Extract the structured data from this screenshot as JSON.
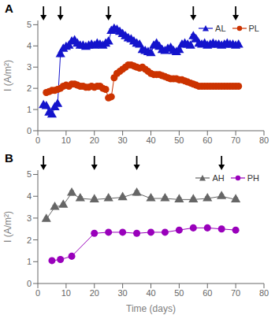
{
  "chart_data": [
    {
      "type": "line",
      "title": "A",
      "y_label": "I (A/m²)",
      "xlim": [
        0,
        80
      ],
      "xticks": [
        0,
        10,
        20,
        30,
        40,
        50,
        60,
        70,
        80
      ],
      "ylim": [
        0,
        5.2
      ],
      "yticks": [
        0,
        1,
        2,
        3,
        4,
        5
      ],
      "grid": false,
      "legend": "upper right",
      "arrows_x": [
        2,
        8,
        25,
        55,
        70
      ],
      "series": [
        {
          "name": "AL",
          "color": "#1414cc",
          "marker": "triangle",
          "line_style": "solid",
          "x": [
            2,
            3,
            4,
            5,
            6,
            7,
            8,
            9,
            10,
            11,
            12,
            13,
            14,
            15,
            16,
            17,
            18,
            19,
            20,
            21,
            22,
            23,
            24,
            25,
            26,
            27,
            28,
            29,
            30,
            31,
            32,
            33,
            34,
            35,
            36,
            37,
            38,
            39,
            40,
            41,
            42,
            43,
            44,
            45,
            46,
            47,
            48,
            49,
            50,
            51,
            52,
            53,
            54,
            55,
            56,
            57,
            58,
            59,
            60,
            61,
            62,
            63,
            64,
            65,
            66,
            67,
            68,
            69,
            70,
            71
          ],
          "values": [
            1.2,
            1.15,
            0.85,
            0.75,
            1.1,
            1.25,
            3.6,
            3.85,
            3.95,
            4.0,
            4.2,
            4.25,
            4.1,
            4.0,
            4.0,
            3.95,
            4.0,
            4.05,
            4.0,
            4.1,
            4.05,
            4.0,
            4.1,
            4.2,
            4.7,
            4.8,
            4.75,
            4.65,
            4.55,
            4.45,
            4.35,
            4.3,
            4.2,
            4.1,
            4.05,
            3.8,
            3.75,
            3.7,
            3.65,
            4.0,
            4.1,
            3.95,
            3.8,
            3.75,
            3.85,
            3.9,
            3.75,
            3.7,
            3.8,
            4.05,
            4.1,
            4.05,
            4.0,
            4.45,
            4.3,
            4.1,
            4.05,
            4.1,
            4.0,
            4.05,
            4.1,
            4.05,
            4.05,
            4.0,
            4.05,
            4.1,
            4.05,
            4.05,
            4.0,
            4.05
          ],
          "error": [
            0.05,
            0.05,
            0.05,
            0.05,
            0.05,
            0.05,
            0.1,
            0.05,
            0.05,
            0.05,
            0.05,
            0.05,
            0.05,
            0.05,
            0.05,
            0.05,
            0.05,
            0.05,
            0.05,
            0.05,
            0.05,
            0.05,
            0.05,
            0.05,
            0.1,
            0.1,
            0.1,
            0.1,
            0.08,
            0.08,
            0.08,
            0.08,
            0.08,
            0.08,
            0.08,
            0.08,
            0.08,
            0.08,
            0.08,
            0.08,
            0.08,
            0.08,
            0.08,
            0.08,
            0.08,
            0.08,
            0.08,
            0.08,
            0.08,
            0.08,
            0.08,
            0.08,
            0.08,
            0.1,
            0.08,
            0.08,
            0.08,
            0.08,
            0.08,
            0.08,
            0.08,
            0.08,
            0.08,
            0.08,
            0.08,
            0.08,
            0.08,
            0.08,
            0.08,
            0.08
          ]
        },
        {
          "name": "PL",
          "color": "#cc3300",
          "marker": "circle",
          "line_style": "solid",
          "x": [
            3,
            4,
            5,
            6,
            7,
            8,
            9,
            10,
            11,
            12,
            13,
            14,
            15,
            16,
            17,
            18,
            19,
            20,
            21,
            22,
            23,
            24,
            25,
            26,
            27,
            28,
            29,
            30,
            31,
            32,
            33,
            34,
            35,
            36,
            37,
            38,
            39,
            40,
            41,
            42,
            43,
            44,
            45,
            46,
            47,
            48,
            49,
            50,
            51,
            52,
            53,
            54,
            55,
            56,
            57,
            58,
            59,
            60,
            61,
            62,
            63,
            64,
            65,
            66,
            67,
            68,
            69,
            70,
            71
          ],
          "values": [
            1.8,
            1.85,
            1.9,
            1.9,
            1.95,
            2.0,
            2.1,
            2.15,
            2.1,
            2.2,
            2.2,
            2.15,
            2.1,
            2.1,
            2.05,
            2.05,
            2.1,
            2.05,
            2.1,
            2.1,
            2.0,
            1.95,
            1.55,
            1.6,
            2.5,
            2.7,
            2.8,
            2.9,
            3.0,
            3.1,
            3.1,
            3.05,
            3.0,
            2.95,
            3.0,
            2.9,
            2.8,
            2.7,
            2.65,
            2.65,
            2.65,
            2.6,
            2.55,
            2.5,
            2.45,
            2.45,
            2.45,
            2.4,
            2.4,
            2.35,
            2.3,
            2.25,
            2.2,
            2.15,
            2.1,
            2.1,
            2.1,
            2.1,
            2.1,
            2.1,
            2.1,
            2.1,
            2.1,
            2.1,
            2.1,
            2.1,
            2.1,
            2.1,
            2.1
          ],
          "error": [
            0.05,
            0.05,
            0.05,
            0.05,
            0.05,
            0.08,
            0.08,
            0.08,
            0.08,
            0.08,
            0.08,
            0.08,
            0.08,
            0.08,
            0.08,
            0.08,
            0.08,
            0.08,
            0.08,
            0.08,
            0.08,
            0.08,
            0.08,
            0.08,
            0.1,
            0.1,
            0.1,
            0.1,
            0.1,
            0.1,
            0.1,
            0.1,
            0.1,
            0.1,
            0.1,
            0.1,
            0.1,
            0.08,
            0.08,
            0.08,
            0.08,
            0.08,
            0.08,
            0.08,
            0.08,
            0.08,
            0.08,
            0.08,
            0.08,
            0.08,
            0.08,
            0.08,
            0.08,
            0.08,
            0.08,
            0.08,
            0.08,
            0.05,
            0.05,
            0.05,
            0.05,
            0.05,
            0.05,
            0.05,
            0.05,
            0.05,
            0.05,
            0.05,
            0.05
          ]
        }
      ]
    },
    {
      "type": "line",
      "title": "B",
      "x_label": "Time (days)",
      "y_label": "I (A/m²)",
      "xlim": [
        0,
        80
      ],
      "xticks": [
        0,
        10,
        20,
        30,
        40,
        50,
        60,
        70,
        80
      ],
      "ylim": [
        0,
        5.2
      ],
      "yticks": [
        0,
        1,
        2,
        3,
        4,
        5
      ],
      "grid": false,
      "legend": "upper right",
      "arrows_x": [
        2,
        20,
        35,
        65
      ],
      "series": [
        {
          "name": "AH",
          "color": "#666666",
          "marker": "triangle",
          "line_style": "solid",
          "x": [
            3,
            6,
            9,
            12,
            15,
            20,
            25,
            30,
            35,
            40,
            45,
            50,
            55,
            60,
            65,
            70
          ],
          "values": [
            2.95,
            3.5,
            3.6,
            4.15,
            3.9,
            3.85,
            3.9,
            3.95,
            4.15,
            3.9,
            3.9,
            3.85,
            3.85,
            3.9,
            4.0,
            3.85
          ],
          "error": [
            0.08,
            0.08,
            0.08,
            0.1,
            0.08,
            0.08,
            0.08,
            0.08,
            0.1,
            0.08,
            0.08,
            0.08,
            0.08,
            0.08,
            0.08,
            0.08
          ]
        },
        {
          "name": "PH",
          "color": "#9900bb",
          "marker": "circle",
          "line_style": "solid",
          "x": [
            5,
            8,
            12,
            20,
            25,
            30,
            35,
            40,
            45,
            50,
            55,
            60,
            65,
            70
          ],
          "values": [
            1.05,
            1.1,
            1.25,
            2.3,
            2.35,
            2.35,
            2.3,
            2.35,
            2.35,
            2.45,
            2.55,
            2.55,
            2.5,
            2.45
          ],
          "error": [
            0.08,
            0.08,
            0.08,
            0.08,
            0.08,
            0.08,
            0.08,
            0.08,
            0.08,
            0.08,
            0.08,
            0.08,
            0.08,
            0.08
          ]
        }
      ]
    }
  ]
}
